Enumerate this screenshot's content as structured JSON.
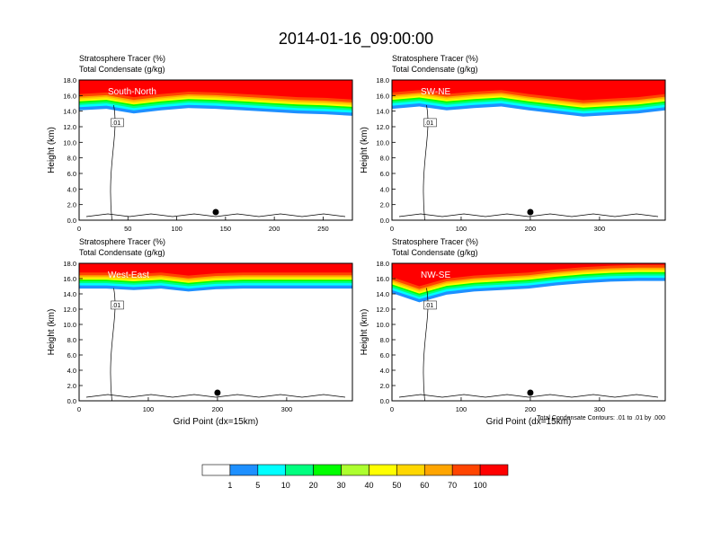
{
  "title": "2014-01-16_09:00:00",
  "panel_header": {
    "line1": "Stratosphere Tracer   (%)",
    "line2": "Total Condensate   (g/kg)"
  },
  "y_axis_label": "Height (km)",
  "x_axis_label": "Grid Point (dx=15km)",
  "contour_note": "Total Condensate Contours: .01 to .01 by .000",
  "contour_label": ".01",
  "colorbar": {
    "levels": [
      "1",
      "5",
      "10",
      "20",
      "30",
      "40",
      "50",
      "60",
      "70",
      "100"
    ],
    "colors": [
      "#ffffff",
      "#1e90ff",
      "#00ffff",
      "#00ff7f",
      "#00ff00",
      "#adff2f",
      "#ffff00",
      "#ffd700",
      "#ffa500",
      "#ff4500",
      "#ff0000"
    ]
  },
  "chart_data": [
    {
      "type": "heatmap",
      "name": "South-North",
      "xlim": [
        0,
        280
      ],
      "ylim": [
        0,
        18
      ],
      "x_ticks": [
        0,
        50,
        100,
        150,
        200,
        250
      ],
      "y_ticks": [
        "0.0",
        "2.0",
        "4.0",
        "6.0",
        "8.0",
        "10.0",
        "12.0",
        "14.0",
        "16.0",
        "18.0"
      ],
      "tropopause_km": [
        15.0,
        15.2,
        14.6,
        15.0,
        15.3,
        15.2,
        15.0,
        14.8,
        14.6,
        14.5,
        14.3
      ],
      "marker_x": 140
    },
    {
      "type": "heatmap",
      "name": "SW-NE",
      "xlim": [
        0,
        395
      ],
      "ylim": [
        0,
        18
      ],
      "x_ticks": [
        0,
        100,
        200,
        300
      ],
      "y_ticks": [
        "0.0",
        "2.0",
        "4.0",
        "6.0",
        "8.0",
        "10.0",
        "12.0",
        "14.0",
        "16.0",
        "18.0"
      ],
      "tropopause_km": [
        15.2,
        15.5,
        15.0,
        15.3,
        15.5,
        15.0,
        14.6,
        14.2,
        14.4,
        14.6,
        15.0
      ],
      "marker_x": 200
    },
    {
      "type": "heatmap",
      "name": "West-East",
      "xlim": [
        0,
        395
      ],
      "ylim": [
        0,
        18
      ],
      "x_ticks": [
        0,
        100,
        200,
        300
      ],
      "y_ticks": [
        "0.0",
        "2.0",
        "4.0",
        "6.0",
        "8.0",
        "10.0",
        "12.0",
        "14.0",
        "16.0",
        "18.0"
      ],
      "tropopause_km": [
        15.6,
        15.6,
        15.4,
        15.6,
        15.2,
        15.5,
        15.6,
        15.6,
        15.6,
        15.6,
        15.6
      ],
      "marker_x": 200
    },
    {
      "type": "heatmap",
      "name": "NW-SE",
      "xlim": [
        0,
        395
      ],
      "ylim": [
        0,
        18
      ],
      "x_ticks": [
        0,
        100,
        200,
        300
      ],
      "y_ticks": [
        "0.0",
        "2.0",
        "4.0",
        "6.0",
        "8.0",
        "10.0",
        "12.0",
        "14.0",
        "16.0",
        "18.0"
      ],
      "tropopause_km": [
        15.0,
        13.8,
        14.8,
        15.2,
        15.4,
        15.6,
        16.0,
        16.3,
        16.5,
        16.6,
        16.6
      ],
      "marker_x": 200
    }
  ]
}
